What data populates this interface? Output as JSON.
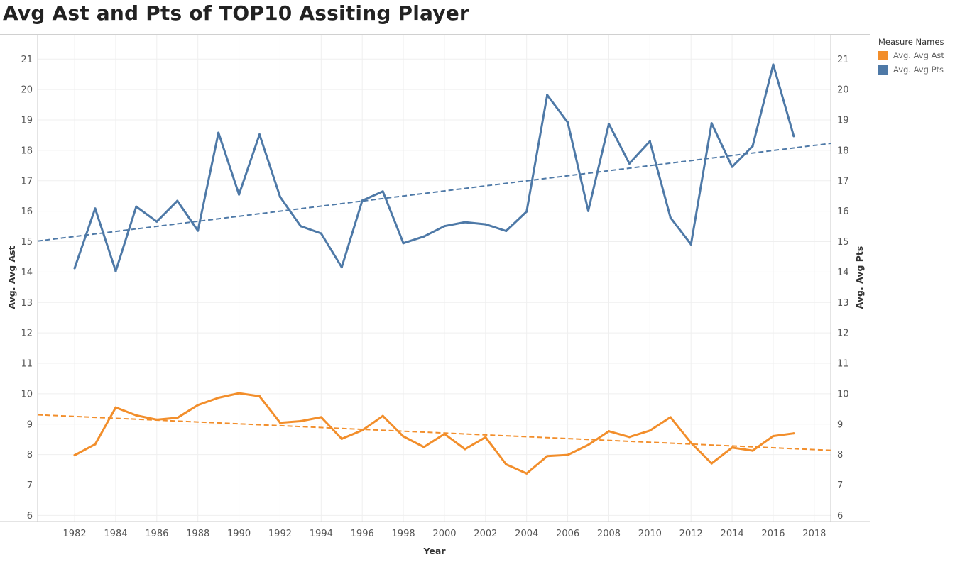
{
  "title": "Avg Ast and Pts of TOP10 Assiting Player",
  "legend": {
    "title": "Measure Names",
    "items": [
      {
        "label": "Avg. Avg Ast",
        "color": "#f28e2b"
      },
      {
        "label": "Avg. Avg Pts",
        "color": "#4e79a7"
      }
    ]
  },
  "chart_data": {
    "type": "line",
    "title": "Avg Ast and Pts of TOP10 Assiting Player",
    "xlabel": "Year",
    "ylabel": "Avg. Avg Ast",
    "ylabel_right": "Avg. Avg Pts",
    "xlim": [
      1980.2,
      2018.8
    ],
    "ylim": [
      5.8,
      21.8
    ],
    "x_ticks": [
      1982,
      1984,
      1986,
      1988,
      1990,
      1992,
      1994,
      1996,
      1998,
      2000,
      2002,
      2004,
      2006,
      2008,
      2010,
      2012,
      2014,
      2016,
      2018
    ],
    "y_ticks": [
      6,
      7,
      8,
      9,
      10,
      11,
      12,
      13,
      14,
      15,
      16,
      17,
      18,
      19,
      20,
      21
    ],
    "grid": true,
    "legend_position": "top-right",
    "x": [
      1982,
      1983,
      1984,
      1985,
      1986,
      1987,
      1988,
      1989,
      1990,
      1991,
      1992,
      1993,
      1994,
      1995,
      1996,
      1997,
      1998,
      1999,
      2000,
      2001,
      2002,
      2003,
      2004,
      2005,
      2006,
      2007,
      2008,
      2009,
      2010,
      2011,
      2012,
      2013,
      2014,
      2015,
      2016,
      2017
    ],
    "series": [
      {
        "name": "Avg. Avg Ast",
        "color": "#f28e2b",
        "values": [
          7.98,
          8.34,
          9.55,
          9.29,
          9.15,
          9.21,
          9.63,
          9.87,
          10.02,
          9.92,
          9.05,
          9.1,
          9.23,
          8.52,
          8.8,
          9.27,
          8.6,
          8.25,
          8.68,
          8.18,
          8.57,
          7.68,
          7.38,
          7.95,
          7.99,
          8.32,
          8.77,
          8.58,
          8.79,
          9.23,
          8.39,
          7.71,
          8.23,
          8.13,
          8.61,
          8.7
        ],
        "trend": {
          "start": [
            1980.2,
            9.31
          ],
          "end": [
            2018.8,
            8.14
          ]
        }
      },
      {
        "name": "Avg. Avg Pts",
        "color": "#4e79a7",
        "values": [
          14.13,
          16.09,
          14.03,
          16.15,
          15.66,
          16.34,
          15.36,
          18.58,
          16.55,
          18.52,
          16.47,
          15.51,
          15.27,
          14.16,
          16.35,
          16.65,
          14.95,
          15.17,
          15.51,
          15.64,
          15.57,
          15.35,
          15.99,
          19.82,
          18.92,
          16.01,
          18.87,
          17.57,
          18.3,
          15.79,
          14.91,
          18.89,
          17.46,
          18.14,
          20.82,
          18.47
        ],
        "trend": {
          "start": [
            1980.2,
            15.02
          ],
          "end": [
            2018.8,
            18.23
          ]
        }
      }
    ]
  }
}
